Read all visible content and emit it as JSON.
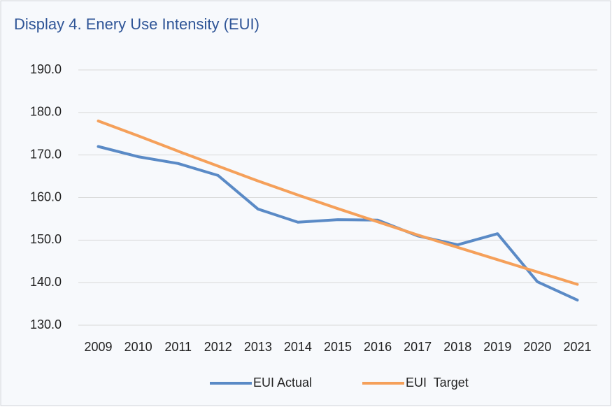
{
  "chart_data": {
    "type": "line",
    "title": "Display 4. Enery Use Intensity (EUI)",
    "categories": [
      "2009",
      "2010",
      "2011",
      "2012",
      "2013",
      "2014",
      "2015",
      "2016",
      "2017",
      "2018",
      "2019",
      "2020",
      "2021"
    ],
    "series": [
      {
        "name": "EUI Actual",
        "color": "#5a8ac6",
        "values": [
          172.0,
          169.6,
          168.0,
          165.2,
          157.3,
          154.2,
          154.8,
          154.7,
          151.0,
          148.9,
          151.5,
          140.2,
          135.9
        ]
      },
      {
        "name": "EUI  Target",
        "color": "#f5a05a",
        "values": [
          178.0,
          174.5,
          170.9,
          167.4,
          163.9,
          160.6,
          157.4,
          154.3,
          151.2,
          148.3,
          145.4,
          142.5,
          139.6
        ]
      }
    ],
    "ylim": [
      130,
      190
    ],
    "yticks": [
      {
        "value": 130,
        "label": "130.0"
      },
      {
        "value": 140,
        "label": "140.0"
      },
      {
        "value": 150,
        "label": "150.0"
      },
      {
        "value": 160,
        "label": "160.0"
      },
      {
        "value": 170,
        "label": "170.0"
      },
      {
        "value": 180,
        "label": "180.0"
      },
      {
        "value": 190,
        "label": "190.0"
      }
    ],
    "grid": true,
    "legend": "bottom"
  }
}
